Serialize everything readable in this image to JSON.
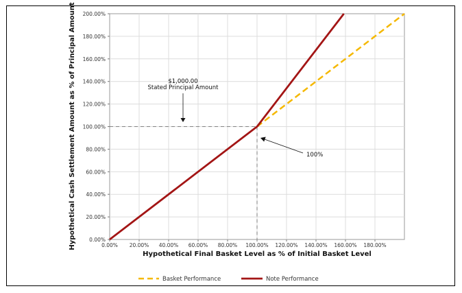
{
  "chart_data": {
    "type": "line",
    "xlabel": "Hypothetical Final Basket Level as % of Initial Basket Level",
    "ylabel": "Hypothetical Cash Settlement Amount as % of Principal Amount",
    "xlim": [
      0,
      200
    ],
    "ylim": [
      0,
      200
    ],
    "x_ticks": [
      "0.00%",
      "20.00%",
      "40.00%",
      "60.00%",
      "80.00%",
      "100.00%",
      "120.00%",
      "140.00%",
      "160.00%",
      "180.00%"
    ],
    "y_ticks": [
      "0.00%",
      "20.00%",
      "40.00%",
      "60.00%",
      "80.00%",
      "100.00%",
      "120.00%",
      "140.00%",
      "160.00%",
      "180.00%",
      "200.00%"
    ],
    "grid": true,
    "legend_position": "bottom",
    "series": [
      {
        "name": "Basket Performance",
        "color": "#f5b800",
        "style": "dashed",
        "x": [
          100,
          200
        ],
        "y": [
          100,
          200
        ]
      },
      {
        "name": "Note Performance",
        "color": "#a31515",
        "style": "solid",
        "x": [
          0,
          100,
          158.9
        ],
        "y": [
          0,
          100,
          200
        ]
      }
    ],
    "annotations": [
      {
        "lines": [
          "$1,000.00",
          "Stated Principal Amount"
        ]
      },
      {
        "text": "100%"
      }
    ]
  }
}
